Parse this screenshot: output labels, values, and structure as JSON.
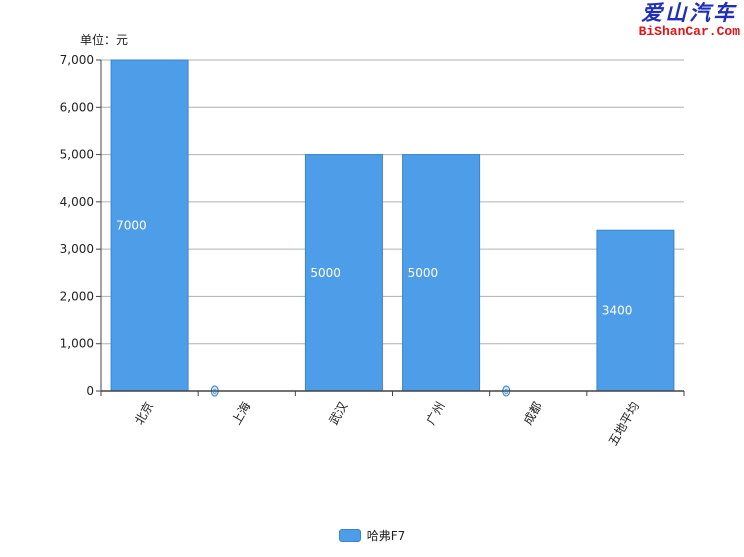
{
  "unit_label": "单位：元",
  "watermark": {
    "cn": "爱山汽车",
    "en": "BiShanCar.Com"
  },
  "colors": {
    "bar": "#4e9de8",
    "bar_stroke": "#3a84cc",
    "grid": "#b0b0b0",
    "axis": "#444444"
  },
  "chart_data": {
    "type": "bar",
    "categories": [
      "北京",
      "上海",
      "武汉",
      "广州",
      "成都",
      "五地平均"
    ],
    "series": [
      {
        "name": "哈弗F7",
        "values": [
          7000,
          0,
          5000,
          5000,
          0,
          3400
        ]
      }
    ],
    "value_labels": [
      "7000",
      "0",
      "5000",
      "5000",
      "0",
      "3400"
    ],
    "y_ticks": [
      0,
      1000,
      2000,
      3000,
      4000,
      5000,
      6000,
      7000
    ],
    "y_tick_labels": [
      "0",
      "1,000",
      "2,000",
      "3,000",
      "4,000",
      "5,000",
      "6,000",
      "7,000"
    ],
    "ylim": [
      0,
      7000
    ],
    "grid": true,
    "legend_position": "bottom-center"
  }
}
